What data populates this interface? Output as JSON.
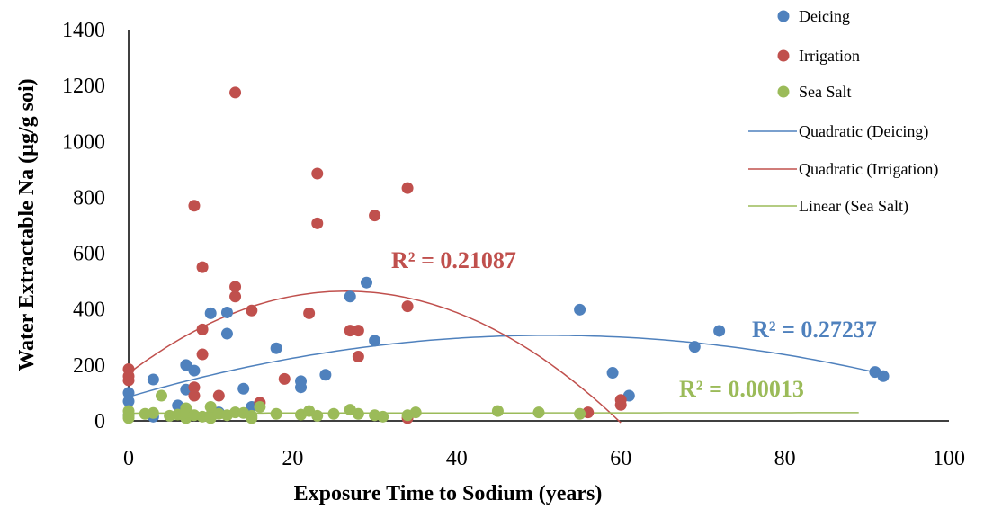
{
  "chart_data": {
    "type": "scatter",
    "xlabel": "Exposure Time to Sodium (years)",
    "ylabel": "Water Extractable Na (µg/g soi)",
    "xlim": [
      0,
      100
    ],
    "ylim": [
      0,
      1400
    ],
    "x_ticks": [
      "0",
      "20",
      "40",
      "60",
      "80",
      "100"
    ],
    "y_ticks": [
      "0",
      "200",
      "400",
      "600",
      "800",
      "1000",
      "1200",
      "1400"
    ],
    "legend_position": "top-right",
    "series": [
      {
        "name": "Deicing",
        "color": "#4f81bd",
        "points": [
          [
            0,
            100
          ],
          [
            0,
            70
          ],
          [
            0,
            20
          ],
          [
            3,
            148
          ],
          [
            3,
            15
          ],
          [
            6,
            55
          ],
          [
            7,
            200
          ],
          [
            7,
            112
          ],
          [
            8,
            180
          ],
          [
            10,
            385
          ],
          [
            11,
            30
          ],
          [
            12,
            388
          ],
          [
            12,
            312
          ],
          [
            14,
            115
          ],
          [
            15,
            50
          ],
          [
            18,
            260
          ],
          [
            21,
            120
          ],
          [
            21,
            142
          ],
          [
            24,
            165
          ],
          [
            27,
            445
          ],
          [
            29,
            495
          ],
          [
            30,
            287
          ],
          [
            55,
            398
          ],
          [
            59,
            172
          ],
          [
            61,
            90
          ],
          [
            69,
            265
          ],
          [
            72,
            322
          ],
          [
            91,
            175
          ],
          [
            92,
            160
          ]
        ]
      },
      {
        "name": "Irrigation",
        "color": "#c0504d",
        "points": [
          [
            0,
            185
          ],
          [
            0,
            160
          ],
          [
            0,
            145
          ],
          [
            8,
            770
          ],
          [
            8,
            120
          ],
          [
            8,
            90
          ],
          [
            9,
            550
          ],
          [
            9,
            327
          ],
          [
            9,
            238
          ],
          [
            11,
            90
          ],
          [
            13,
            1175
          ],
          [
            13,
            480
          ],
          [
            13,
            445
          ],
          [
            15,
            395
          ],
          [
            16,
            65
          ],
          [
            19,
            150
          ],
          [
            22,
            385
          ],
          [
            23,
            885
          ],
          [
            23,
            707
          ],
          [
            27,
            323
          ],
          [
            28,
            323
          ],
          [
            28,
            230
          ],
          [
            30,
            735
          ],
          [
            34,
            833
          ],
          [
            34,
            410
          ],
          [
            34,
            10
          ],
          [
            56,
            30
          ],
          [
            60,
            75
          ],
          [
            60,
            57
          ]
        ]
      },
      {
        "name": "Sea Salt",
        "color": "#9bbb59",
        "points": [
          [
            0,
            35
          ],
          [
            0,
            10
          ],
          [
            0,
            20
          ],
          [
            2,
            25
          ],
          [
            3,
            28
          ],
          [
            4,
            90
          ],
          [
            5,
            18
          ],
          [
            6,
            22
          ],
          [
            7,
            45
          ],
          [
            7,
            10
          ],
          [
            7,
            30
          ],
          [
            8,
            20
          ],
          [
            9,
            15
          ],
          [
            10,
            50
          ],
          [
            10,
            20
          ],
          [
            10,
            10
          ],
          [
            11,
            25
          ],
          [
            12,
            20
          ],
          [
            13,
            30
          ],
          [
            14,
            28
          ],
          [
            15,
            18
          ],
          [
            15,
            10
          ],
          [
            16,
            50
          ],
          [
            18,
            25
          ],
          [
            21,
            22
          ],
          [
            22,
            35
          ],
          [
            23,
            18
          ],
          [
            25,
            25
          ],
          [
            27,
            40
          ],
          [
            28,
            25
          ],
          [
            30,
            20
          ],
          [
            31,
            15
          ],
          [
            34,
            20
          ],
          [
            35,
            30
          ],
          [
            45,
            35
          ],
          [
            50,
            30
          ],
          [
            55,
            25
          ]
        ]
      }
    ],
    "trendlines": [
      {
        "name": "Quadratic (Deicing)",
        "series": "Deicing",
        "type": "quadratic",
        "coef": [
          85.96,
          8.5887,
          -0.08377
        ],
        "x_range": [
          0,
          92
        ],
        "color": "#4f81bd",
        "r2_label": "R² = 0.27237"
      },
      {
        "name": "Quadratic (Irrigation)",
        "series": "Irrigation",
        "type": "quadratic",
        "coef": [
          170.0,
          22.2,
          -0.4191
        ],
        "x_range": [
          0,
          60
        ],
        "color": "#c0504d",
        "r2_label": "R² = 0.21087"
      },
      {
        "name": "Linear  (Sea Salt)",
        "series": "Sea Salt",
        "type": "linear",
        "coef": [
          27.5,
          0.02
        ],
        "x_range": [
          0,
          89
        ],
        "color": "#9bbb59",
        "r2_label": "R² = 0.00013"
      }
    ],
    "legend": [
      "Deicing",
      "Irrigation",
      "Sea Salt",
      "Quadratic (Deicing)",
      "Quadratic (Irrigation)",
      "Linear  (Sea Salt)"
    ]
  }
}
